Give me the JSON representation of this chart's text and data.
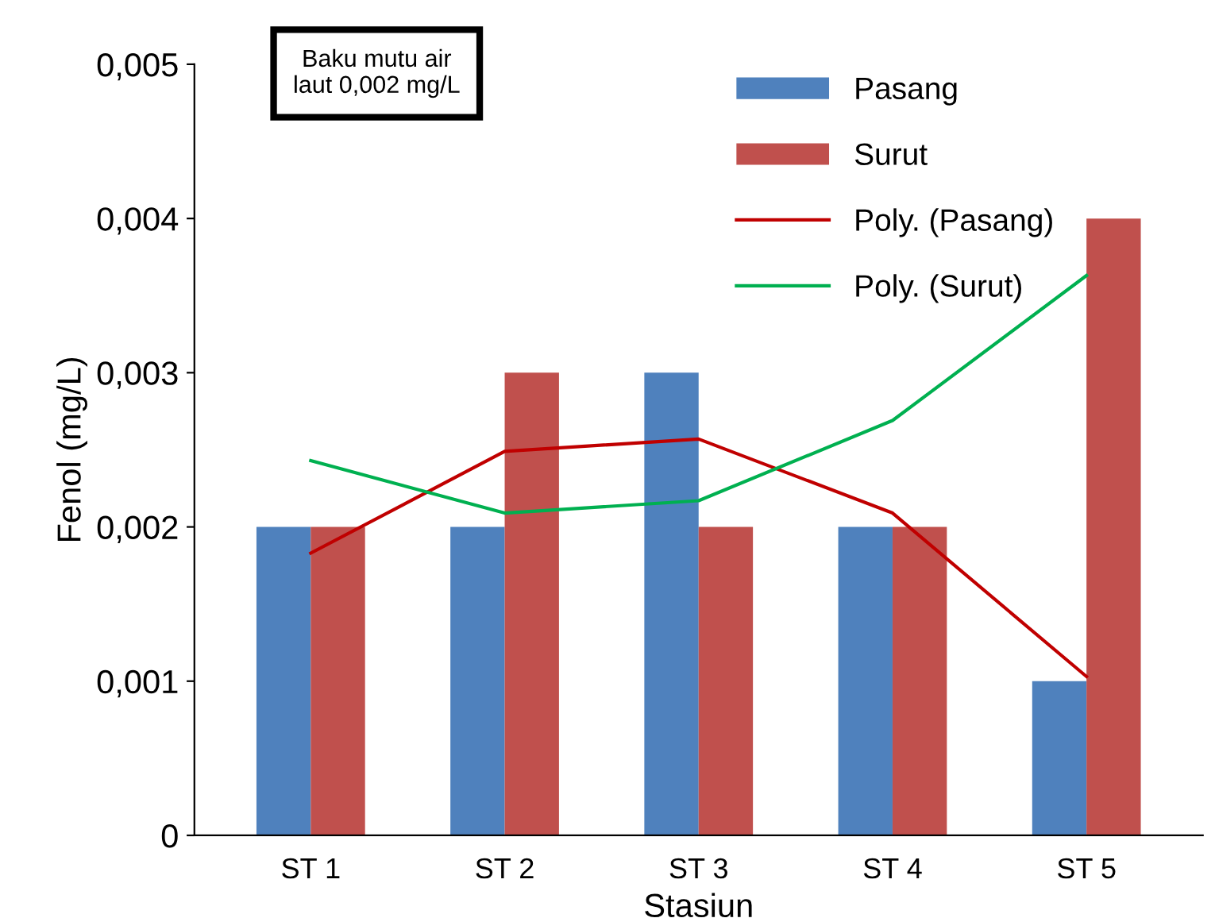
{
  "chart_data": {
    "type": "bar",
    "categories": [
      "ST 1",
      "ST 2",
      "ST 3",
      "ST 4",
      "ST 5"
    ],
    "xlabel": "Stasiun",
    "ylabel": "Fenol (mg/L)",
    "series": [
      {
        "name": "Pasang",
        "color": "#4f81bd",
        "values": [
          0.002,
          0.002,
          0.003,
          0.002,
          0.001
        ]
      },
      {
        "name": "Surut",
        "color": "#c0504d",
        "values": [
          0.002,
          0.003,
          0.002,
          0.002,
          0.004
        ]
      },
      {
        "name": "Poly. (Pasang)",
        "type": "line",
        "color": "#c00000",
        "x": [
          "ST 1",
          "ST 2",
          "ST 3",
          "ST 4",
          "ST 5"
        ],
        "values": [
          0.00183,
          0.00249,
          0.00257,
          0.00209,
          0.00103
        ]
      },
      {
        "name": "Poly. (Surut)",
        "type": "line",
        "color": "#00b050",
        "x": [
          "ST 1",
          "ST 2",
          "ST 3",
          "ST 4",
          "ST 5"
        ],
        "values": [
          0.00243,
          0.00209,
          0.00217,
          0.00269,
          0.00363
        ]
      }
    ],
    "ylim": [
      0,
      0.005
    ],
    "yticks": [
      {
        "value": 0,
        "label": "0"
      },
      {
        "value": 0.001,
        "label": "0,001"
      },
      {
        "value": 0.002,
        "label": "0,002"
      },
      {
        "value": 0.003,
        "label": "0,003"
      },
      {
        "value": 0.004,
        "label": "0,004"
      },
      {
        "value": 0.005,
        "label": "0,005"
      }
    ],
    "annotations": [
      "Baku mutu air\nlaut 0,002 mg/L"
    ],
    "grid": false,
    "legend": "top right"
  }
}
